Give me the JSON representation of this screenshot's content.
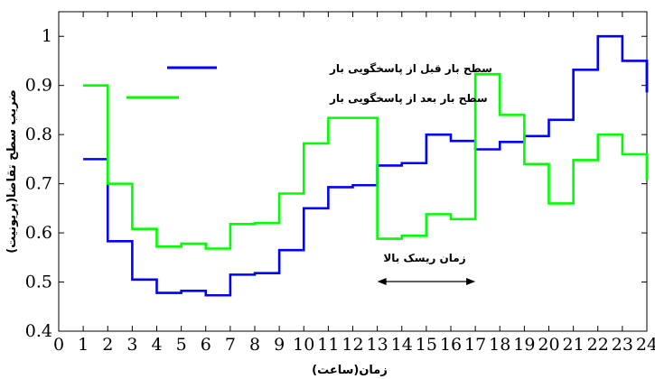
{
  "chart_data": {
    "type": "line",
    "step": true,
    "xlabel": "زمان(ساعت)",
    "ylabel": "ضریب سطح تقاضا(پریونیت)",
    "xlim": [
      0,
      24
    ],
    "ylim": [
      0.4,
      1.05
    ],
    "xticks": [
      0,
      1,
      2,
      3,
      4,
      5,
      6,
      7,
      8,
      9,
      10,
      11,
      12,
      13,
      14,
      15,
      16,
      17,
      18,
      19,
      20,
      21,
      22,
      23,
      24
    ],
    "yticks": [
      0.4,
      0.5,
      0.6,
      0.7,
      0.8,
      0.9,
      1
    ],
    "ytick_labels": [
      "0.4",
      "0.5",
      "0.6",
      "0.7",
      "0.8",
      "0.9",
      "1"
    ],
    "grid": false,
    "legend_position": "top-left",
    "series": [
      {
        "name": "سطح بار قبل از پاسخگویی بار",
        "color": "#0000ff",
        "hours": [
          1,
          2,
          3,
          4,
          5,
          6,
          7,
          8,
          9,
          10,
          11,
          12,
          13,
          14,
          15,
          16,
          17,
          18,
          19,
          20,
          21,
          22,
          23,
          24
        ],
        "values": [
          0.75,
          0.583,
          0.505,
          0.478,
          0.482,
          0.473,
          0.515,
          0.518,
          0.565,
          0.65,
          0.693,
          0.697,
          0.737,
          0.742,
          0.8,
          0.787,
          0.77,
          0.785,
          0.797,
          0.83,
          0.932,
          1.0,
          0.95,
          0.886
        ]
      },
      {
        "name": "سطح بار بعد از پاسخگویی بار",
        "color": "#00ff00",
        "hours": [
          1,
          2,
          3,
          4,
          5,
          6,
          7,
          8,
          9,
          10,
          11,
          12,
          13,
          14,
          15,
          16,
          17,
          18,
          19,
          20,
          21,
          22,
          23,
          24
        ],
        "values": [
          0.9,
          0.7,
          0.608,
          0.572,
          0.578,
          0.568,
          0.618,
          0.62,
          0.68,
          0.782,
          0.834,
          0.834,
          0.588,
          0.594,
          0.638,
          0.628,
          0.923,
          0.84,
          0.74,
          0.66,
          0.748,
          0.8,
          0.76,
          0.708
        ]
      }
    ],
    "annotations": [
      {
        "text": "زمان ریسک بالا",
        "x_start": 13,
        "x_end": 17
      }
    ]
  }
}
